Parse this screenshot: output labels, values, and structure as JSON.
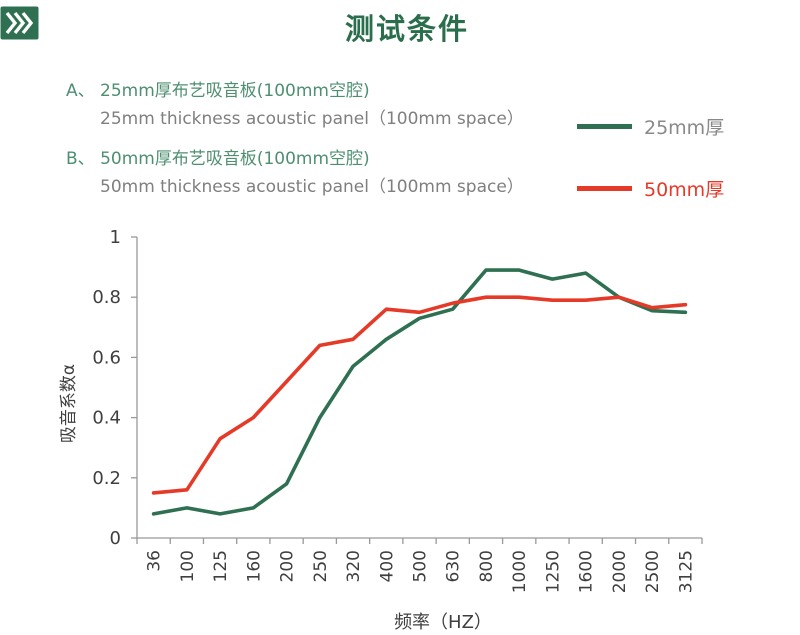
{
  "header": {
    "title": "测试条件",
    "badge_icon": "triple-chevron-right-icon",
    "badge_color": "#2e7051",
    "title_color": "#2b6e4c"
  },
  "conditions": [
    {
      "label": "A、",
      "line_cn": "A、 25mm厚布艺吸音板(100mm空腔)",
      "line_en": "25mm thickness acoustic panel（100mm space）"
    },
    {
      "label": "B、",
      "line_cn": "B、 50mm厚布艺吸音板(100mm空腔)",
      "line_en": "50mm thickness acoustic panel（100mm space）"
    }
  ],
  "legend": [
    {
      "label": "25mm厚",
      "swatch_color": "#2e7051",
      "label_color": "#898989"
    },
    {
      "label": "50mm厚",
      "swatch_color": "#e63a28",
      "label_color": "#e63a28"
    }
  ],
  "chart_data": {
    "type": "line",
    "title": "",
    "xlabel": "频率（HZ）",
    "ylabel": "吸音系数α",
    "ylim": [
      0,
      1
    ],
    "yticks": [
      0,
      0.2,
      0.4,
      0.6,
      0.8,
      1
    ],
    "grid": false,
    "legend_position": "top-right",
    "categories": [
      "36",
      "100",
      "125",
      "160",
      "200",
      "250",
      "320",
      "400",
      "500",
      "630",
      "800",
      "1000",
      "1250",
      "1600",
      "2000",
      "2500",
      "3125"
    ],
    "series": [
      {
        "name": "25mm厚",
        "color": "#2e7051",
        "values": [
          0.08,
          0.1,
          0.08,
          0.1,
          0.18,
          0.4,
          0.57,
          0.66,
          0.73,
          0.76,
          0.89,
          0.89,
          0.86,
          0.88,
          0.8,
          0.755,
          0.75
        ]
      },
      {
        "name": "50mm厚",
        "color": "#e63a28",
        "values": [
          0.15,
          0.16,
          0.33,
          0.4,
          0.52,
          0.64,
          0.66,
          0.76,
          0.75,
          0.78,
          0.8,
          0.8,
          0.79,
          0.79,
          0.8,
          0.765,
          0.775
        ]
      }
    ],
    "axis_color": "#999999",
    "tick_label_color": "#3f3f3f"
  }
}
